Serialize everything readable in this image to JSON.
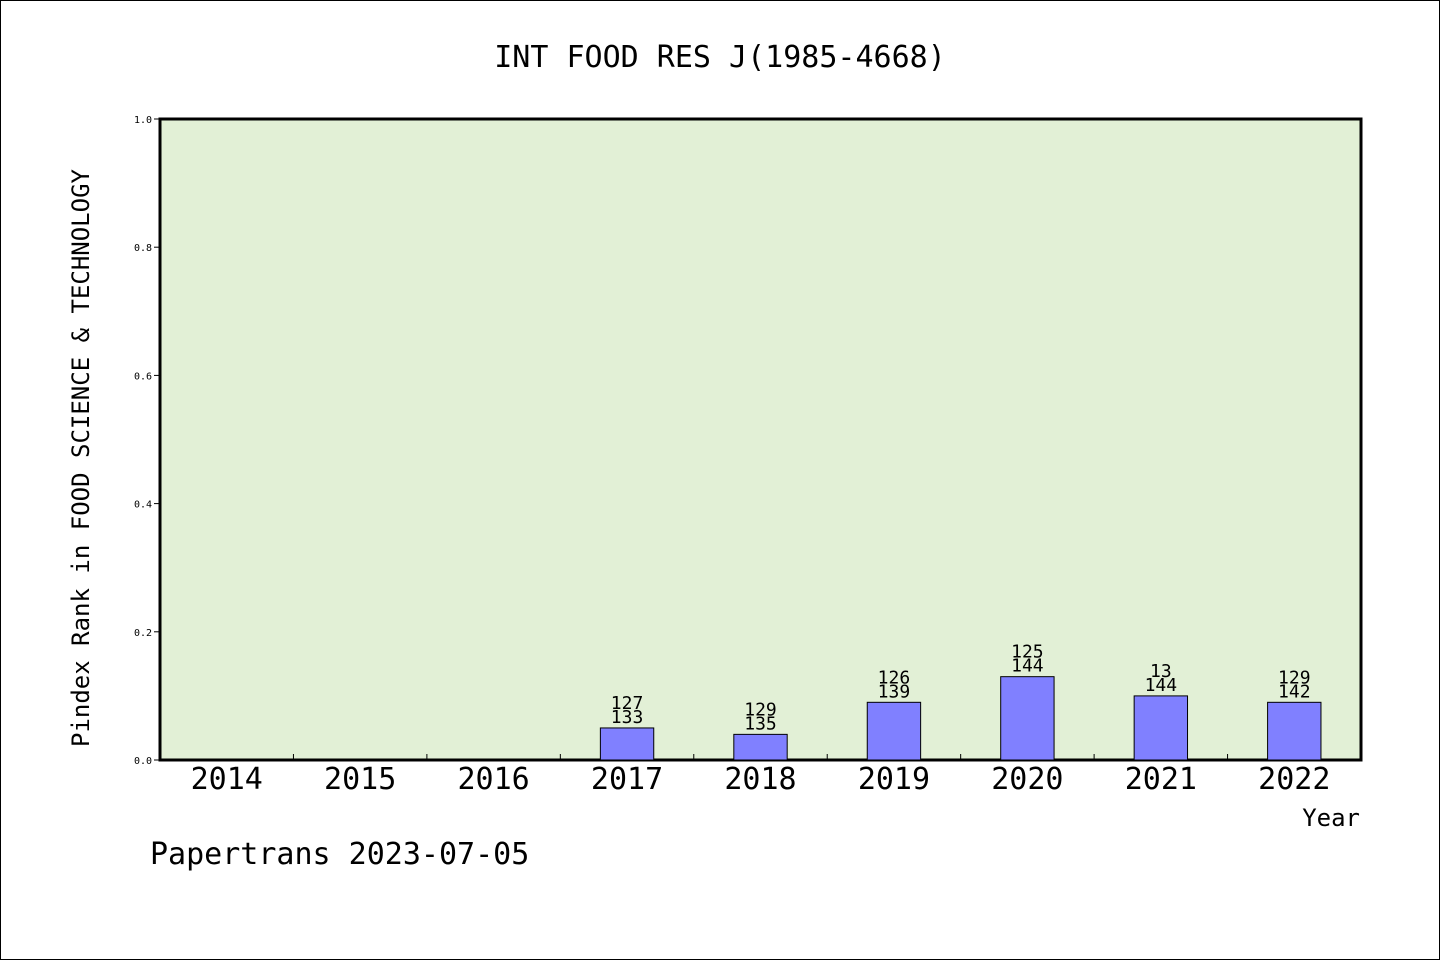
{
  "chart_data": {
    "type": "bar",
    "title": "INT FOOD RES J(1985-4668)",
    "xlabel": "Year",
    "ylabel": "Pindex Rank in FOOD SCIENCE & TECHNOLOGY",
    "categories": [
      "2014",
      "2015",
      "2016",
      "2017",
      "2018",
      "2019",
      "2020",
      "2021",
      "2022"
    ],
    "values": [
      0,
      0,
      0,
      0.05,
      0.04,
      0.09,
      0.13,
      0.1,
      0.09
    ],
    "bar_labels": [
      null,
      null,
      null,
      [
        "127",
        "133"
      ],
      [
        "129",
        "135"
      ],
      [
        "126",
        "139"
      ],
      [
        "125",
        "144"
      ],
      [
        "13",
        "144"
      ],
      [
        "129",
        "142"
      ]
    ],
    "ylim": [
      0,
      1.0
    ],
    "yticks": [
      "0.0",
      "0.2",
      "0.4",
      "0.6",
      "0.8",
      "1.0"
    ],
    "ytick_values": [
      0,
      0.2,
      0.4,
      0.6,
      0.8,
      1.0
    ],
    "grid": false,
    "colors": {
      "plot_background": "#e2f0d6",
      "bar_fill": "#8080ff",
      "bar_stroke": "#000000"
    }
  },
  "footer": "Papertrans 2023-07-05"
}
